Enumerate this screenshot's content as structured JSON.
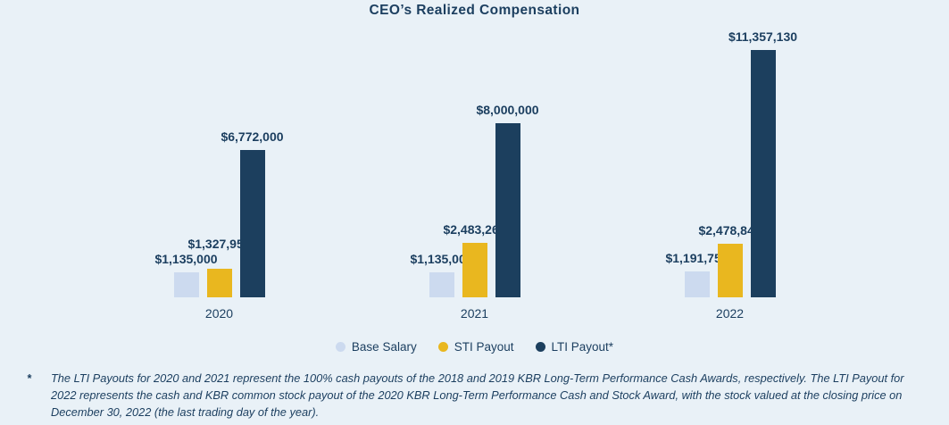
{
  "chart_data": {
    "type": "bar",
    "title": "CEO’s Realized Compensation",
    "categories": [
      "2020",
      "2021",
      "2022"
    ],
    "series": [
      {
        "name": "Base Salary",
        "color": "#ccdaef",
        "values": [
          1135000,
          1135000,
          1191750
        ],
        "labels": [
          "$1,135,000",
          "$1,135,000",
          "$1,191,750"
        ]
      },
      {
        "name": "STI Payout",
        "color": "#e9b71f",
        "values": [
          1327950,
          2483267,
          2478840
        ],
        "labels": [
          "$1,327,950",
          "$2,483,267",
          "$2,478,840"
        ]
      },
      {
        "name": "LTI Payout*",
        "color": "#1c3f5e",
        "values": [
          6772000,
          8000000,
          11357130
        ],
        "labels": [
          "$6,772,000",
          "$8,000,000",
          "$11,357,130"
        ]
      }
    ],
    "legend": [
      "Base Salary",
      "STI Payout",
      "LTI Payout*"
    ],
    "legend_position": "bottom",
    "grid": false,
    "xlabel": "",
    "ylabel": "",
    "ylim": [
      0,
      11357130
    ],
    "text_color": "#1b3e5f",
    "background": "#e9f1f7"
  },
  "footnote": {
    "marker": "*",
    "text": "The LTI Payouts for 2020 and 2021 represent the 100% cash payouts of the 2018 and 2019 KBR Long-Term Performance Cash Awards, respectively. The LTI Payout for 2022 represents the cash and KBR common stock payout of the 2020 KBR Long-Term Performance Cash and Stock Award, with the stock valued at the closing price on December 30, 2022 (the last trading day of the year)."
  }
}
